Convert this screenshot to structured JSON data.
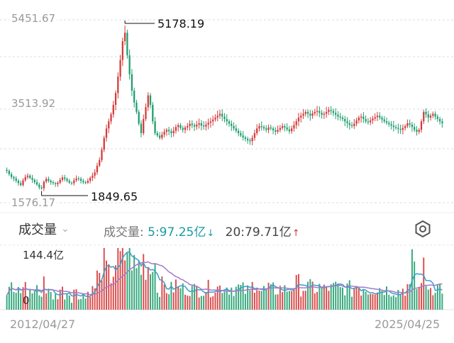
{
  "chart_data": [
    {
      "type": "candlestick",
      "y_ticks": [
        "5451.67",
        "3513.92",
        "1576.17"
      ],
      "ylim": [
        1576.17,
        5451.67
      ],
      "annotations": [
        {
          "text": "5178.19",
          "kind": "high"
        },
        {
          "text": "1849.65",
          "kind": "low"
        }
      ],
      "close_series": [
        2250,
        2180,
        2120,
        2090,
        2040,
        1990,
        1950,
        2050,
        2120,
        2150,
        2100,
        2060,
        2010,
        1960,
        1900,
        1880,
        2020,
        2080,
        2040,
        2010,
        1990,
        1970,
        2000,
        2060,
        2110,
        2080,
        2040,
        2000,
        1990,
        2050,
        2090,
        2080,
        2040,
        2010,
        2000,
        2040,
        2100,
        2150,
        2220,
        2360,
        2480,
        2700,
        2950,
        3150,
        3300,
        3450,
        3650,
        3900,
        4250,
        4600,
        5000,
        5178,
        4700,
        4300,
        3950,
        3700,
        3500,
        3250,
        3050,
        3350,
        3600,
        3850,
        3650,
        3300,
        3050,
        3000,
        2950,
        3020,
        3080,
        3120,
        3090,
        3050,
        3100,
        3180,
        3220,
        3160,
        3120,
        3170,
        3200,
        3250,
        3220,
        3190,
        3230,
        3260,
        3210,
        3190,
        3230,
        3270,
        3300,
        3340,
        3380,
        3420,
        3460,
        3400,
        3350,
        3300,
        3250,
        3200,
        3150,
        3100,
        3050,
        3000,
        2960,
        2930,
        2900,
        2880,
        2950,
        3050,
        3150,
        3200,
        3180,
        3150,
        3120,
        3170,
        3150,
        3110,
        3080,
        3120,
        3160,
        3200,
        3170,
        3130,
        3090,
        3150,
        3220,
        3300,
        3380,
        3420,
        3460,
        3500,
        3460,
        3420,
        3470,
        3500,
        3520,
        3480,
        3440,
        3460,
        3500,
        3540,
        3520,
        3480,
        3440,
        3400,
        3380,
        3350,
        3300,
        3260,
        3220,
        3200,
        3250,
        3320,
        3380,
        3400,
        3350,
        3300,
        3280,
        3320,
        3360,
        3390,
        3420,
        3380,
        3340,
        3300,
        3270,
        3240,
        3210,
        3180,
        3160,
        3140,
        3120,
        3160,
        3200,
        3260,
        3230,
        3180,
        3120,
        3080,
        3120,
        3300,
        3500,
        3450,
        3380,
        3420,
        3460,
        3400,
        3350,
        3300,
        3260
      ],
      "volume": {
        "selector_label": "成交量",
        "info_label": "成交量:",
        "ma5_text": "5:97.25亿",
        "ma20_text": "20:79.71亿",
        "y_max_label": "144.4亿",
        "y_min_label": "0"
      },
      "x_start": "2012/04/27",
      "x_end": "2025/04/25"
    }
  ],
  "colors": {
    "up": "#d63a3a",
    "down": "#1f9e6e",
    "ma5": "#3a9ec9",
    "ma20": "#a679c9",
    "volume_ma20_value": "#1a9aa0"
  },
  "icons": {
    "settings": "hexagon-gear-icon",
    "chevron": "chevron-down-icon"
  }
}
